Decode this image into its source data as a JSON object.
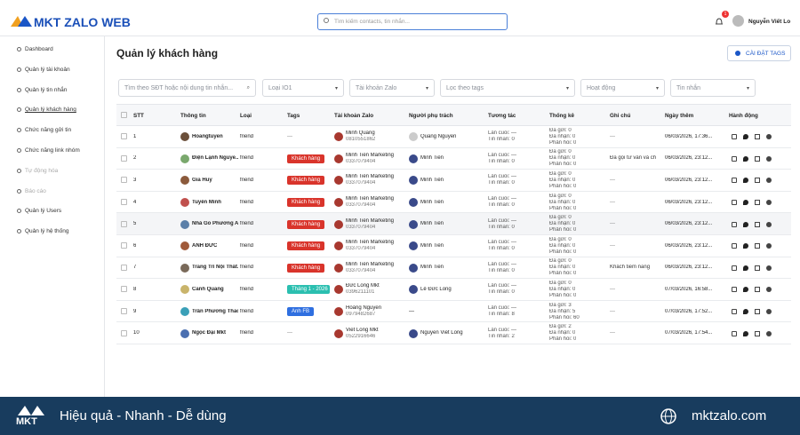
{
  "header": {
    "logo": "MKT ZALO WEB",
    "search_placeholder": "Tìm kiếm contacts, tin nhắn...",
    "notification_count": "1",
    "user_name": "Nguyễn Viết Lo"
  },
  "sidebar": {
    "items": [
      "Dashboard",
      "Quản lý tài khoản",
      "Quản lý tin nhắn",
      "Quản lý khách hàng",
      "Chức năng gửi tin",
      "Chức năng link nhóm",
      "Tự động hóa",
      "Báo cáo",
      "Quản lý Users",
      "Quản lý hệ thống"
    ]
  },
  "page": {
    "title": "Quản lý khách hàng",
    "settings_button": "CÀI ĐẶT TAGS"
  },
  "filters": {
    "search": "Tìm theo SĐT hoặc nội dung tin nhắn...",
    "type": "Loại IO1",
    "account": "Tài khoản Zalo",
    "tags": "Lọc theo tags",
    "activity": "Hoạt động",
    "messages": "Tin nhắn"
  },
  "table": {
    "columns": [
      "STT",
      "Thông tin",
      "Loại",
      "Tags",
      "Tài khoản Zalo",
      "Người phụ trách",
      "Tương tác",
      "Thống kê",
      "Ghi chú",
      "Ngày thêm",
      "Hành động"
    ],
    "rows": [
      {
        "stt": "1",
        "name": "Hoangtuyen",
        "type": "friend",
        "tag": "—",
        "account": "Minh Quang",
        "phone": "0810551862",
        "owner": "Quang Nguyễn",
        "interaction": [
          "Lần cuối: —",
          "Tin nhắn: 0"
        ],
        "stats": [
          "Đã gửi: 0",
          "Đã nhận: 0",
          "Phản hồi: 0"
        ],
        "note": "—",
        "date": "06/03/2026, 17:36..."
      },
      {
        "stt": "2",
        "name": "Điện Lạnh Nguyễ...",
        "type": "friend",
        "tag": "Khách hàng",
        "tag_color": "#d9342b",
        "account": "Minh Tiến Marketing",
        "phone": "0337079404",
        "owner": "Minh Tiến",
        "interaction": [
          "Lần cuối: —",
          "Tin nhắn: 0"
        ],
        "stats": [
          "Đã gửi: 0",
          "Đã nhận: 0",
          "Phản hồi: 0"
        ],
        "note": "Đã gọi tư vấn và ch",
        "date": "06/03/2026, 23:12..."
      },
      {
        "stt": "3",
        "name": "Gia Huy",
        "type": "friend",
        "tag": "Khách hàng",
        "tag_color": "#d9342b",
        "account": "Minh Tiến Marketing",
        "phone": "0337079404",
        "owner": "Minh Tiến",
        "interaction": [
          "Lần cuối: —",
          "Tin nhắn: 0"
        ],
        "stats": [
          "Đã gửi: 0",
          "Đã nhận: 0",
          "Phản hồi: 0"
        ],
        "note": "—",
        "date": "06/03/2026, 23:12..."
      },
      {
        "stt": "4",
        "name": "Tuyền Minh",
        "type": "friend",
        "tag": "Khách hàng",
        "tag_color": "#d9342b",
        "account": "Minh Tiến Marketing",
        "phone": "0337079404",
        "owner": "Minh Tiến",
        "interaction": [
          "Lần cuối: —",
          "Tin nhắn: 0"
        ],
        "stats": [
          "Đã gửi: 0",
          "Đã nhận: 0",
          "Phản hồi: 0"
        ],
        "note": "—",
        "date": "06/03/2026, 23:12..."
      },
      {
        "stt": "5",
        "name": "Nhà Gỗ Phương A...",
        "type": "friend",
        "tag": "Khách hàng",
        "tag_color": "#d9342b",
        "account": "Minh Tiến Marketing",
        "phone": "0337079404",
        "owner": "Minh Tiến",
        "interaction": [
          "Lần cuối: —",
          "Tin nhắn: 0"
        ],
        "stats": [
          "Đã gửi: 0",
          "Đã nhận: 0",
          "Phản hồi: 0"
        ],
        "note": "—",
        "date": "06/03/2026, 23:12..."
      },
      {
        "stt": "6",
        "name": "ANH ĐỨC",
        "type": "friend",
        "tag": "Khách hàng",
        "tag_color": "#d9342b",
        "account": "Minh Tiến Marketing",
        "phone": "0337079404",
        "owner": "Minh Tiến",
        "interaction": [
          "Lần cuối: —",
          "Tin nhắn: 0"
        ],
        "stats": [
          "Đã gửi: 0",
          "Đã nhận: 0",
          "Phản hồi: 0"
        ],
        "note": "—",
        "date": "06/03/2026, 23:12..."
      },
      {
        "stt": "7",
        "name": "Trang Trí Nội Thất...",
        "type": "friend",
        "tag": "Khách hàng",
        "tag_color": "#d9342b",
        "account": "Minh Tiến Marketing",
        "phone": "0337079404",
        "owner": "Minh Tiến",
        "interaction": [
          "Lần cuối: —",
          "Tin nhắn: 0"
        ],
        "stats": [
          "Đã gửi: 0",
          "Đã nhận: 0",
          "Phản hồi: 0"
        ],
        "note": "Khách tiềm năng",
        "date": "06/03/2026, 23:12..."
      },
      {
        "stt": "8",
        "name": "Cảnh Quang",
        "type": "friend",
        "tag": "Tháng 1 - 2026",
        "tag_color": "#2bbfb0",
        "account": "Đức Long Mkt",
        "phone": "0396211101",
        "owner": "Lê Đức Long",
        "interaction": [
          "Lần cuối: —",
          "Tin nhắn: 0"
        ],
        "stats": [
          "Đã gửi: 0",
          "Đã nhận: 0",
          "Phản hồi: 0"
        ],
        "note": "—",
        "date": "07/03/2026, 16:58..."
      },
      {
        "stt": "9",
        "name": "Trần Phương Thảo",
        "type": "friend",
        "tag": "Anh FB",
        "tag_color": "#2f6fe0",
        "account": "Hoàng Nguyễn",
        "phone": "0979482687",
        "owner": "—",
        "interaction": [
          "Lần cuối: —",
          "Tin nhắn: 8"
        ],
        "stats": [
          "Đã gửi: 3",
          "Đã nhận: 5",
          "Phản hồi: 60"
        ],
        "note": "—",
        "date": "07/03/2026, 17:52..."
      },
      {
        "stt": "10",
        "name": "Ngọc Đại Mkt",
        "type": "friend",
        "tag": "—",
        "account": "Viet Long Mkt",
        "phone": "0522916646",
        "owner": "Nguyễn Viết Long",
        "interaction": [
          "Lần cuối: —",
          "Tin nhắn: 2"
        ],
        "stats": [
          "Đã gửi: 2",
          "Đã nhận: 0",
          "Phản hồi: 0"
        ],
        "note": "—",
        "date": "07/03/2026, 17:54..."
      }
    ]
  },
  "footer": {
    "logo": "MKT",
    "tagline": "Hiệu quả - Nhanh - Dễ dùng",
    "website": "mktzalo.com"
  }
}
